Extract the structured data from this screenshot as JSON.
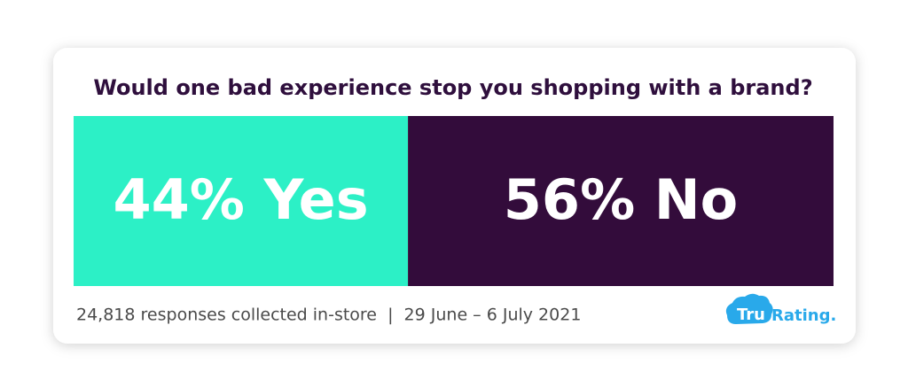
{
  "chart_data": {
    "type": "stacked-bar",
    "title": "Would one bad experience stop you shopping with a brand?",
    "series": [
      {
        "color": "#2cf0c6",
        "values": [
          44
        ],
        "value_labels": [
          "44% Yes"
        ]
      },
      {
        "color": "#330c3b",
        "values": [
          56
        ],
        "value_labels": [
          "56% No"
        ]
      }
    ],
    "note": "24,818 responses collected in-store  |  29 June – 6 July 2021"
  },
  "logo": {
    "badge": "Tru",
    "text": "Rating."
  }
}
